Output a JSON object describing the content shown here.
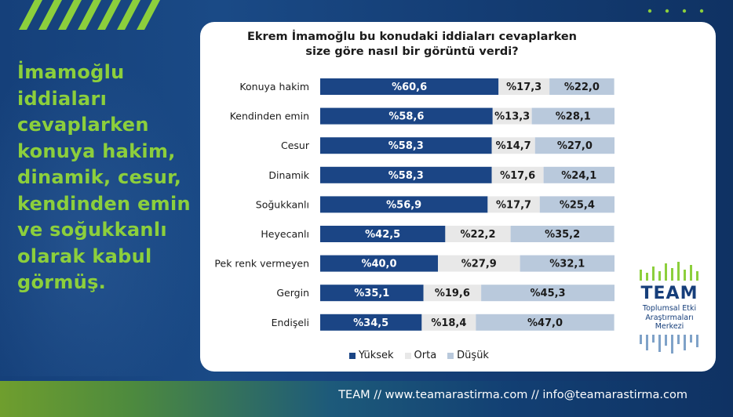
{
  "headline": "İmamoğlu\niddiaları\ncevaplarken\nkonuya hakim,\ndinamik, cesur,\nkendinden emin\nve soğukkanlı\nolarak kabul\ngörmüş.",
  "footer_text": "TEAM // www.teamarastirma.com // info@teamarastirma.com",
  "logo": {
    "name": "TEAM",
    "subtitle": "Toplumsal Etki\nAraştırmaları\nMerkezi"
  },
  "colors": {
    "high": "#1b4585",
    "mid": "#e8e8e8",
    "low": "#b9c9dc",
    "accent_green": "#8ccf3c"
  },
  "chart_data": {
    "type": "bar",
    "orientation": "horizontal",
    "stacked": true,
    "title": "Ekrem İmamoğlu bu konudaki iddiaları cevaplarken\nsize göre nasıl bir görüntü verdi?",
    "categories": [
      "Konuya hakim",
      "Kendinden emin",
      "Cesur",
      "Dinamik",
      "Soğukkanlı",
      "Heyecanlı",
      "Pek renk vermeyen",
      "Gergin",
      "Endişeli"
    ],
    "series": [
      {
        "name": "Yüksek",
        "values": [
          60.6,
          58.6,
          58.3,
          58.3,
          56.9,
          42.5,
          40.0,
          35.1,
          34.5
        ],
        "labels": [
          "%60,6",
          "%58,6",
          "%58,3",
          "%58,3",
          "%56,9",
          "%42,5",
          "%40,0",
          "%35,1",
          "%34,5"
        ]
      },
      {
        "name": "Orta",
        "values": [
          17.3,
          13.3,
          14.7,
          17.6,
          17.7,
          22.2,
          27.9,
          19.6,
          18.4
        ],
        "labels": [
          "%17,3",
          "%13,3",
          "%14,7",
          "%17,6",
          "%17,7",
          "%22,2",
          "%27,9",
          "%19,6",
          "%18,4"
        ]
      },
      {
        "name": "Düşük",
        "values": [
          22.0,
          28.1,
          27.0,
          24.1,
          25.4,
          35.2,
          32.1,
          45.3,
          47.0
        ],
        "labels": [
          "%22,0",
          "%28,1",
          "%27,0",
          "%24,1",
          "%25,4",
          "%35,2",
          "%32,1",
          "%45,3",
          "%47,0"
        ]
      }
    ],
    "legend": [
      "Yüksek",
      "Orta",
      "Düşük"
    ],
    "legend_position": "bottom",
    "xlim": [
      0,
      100
    ]
  }
}
